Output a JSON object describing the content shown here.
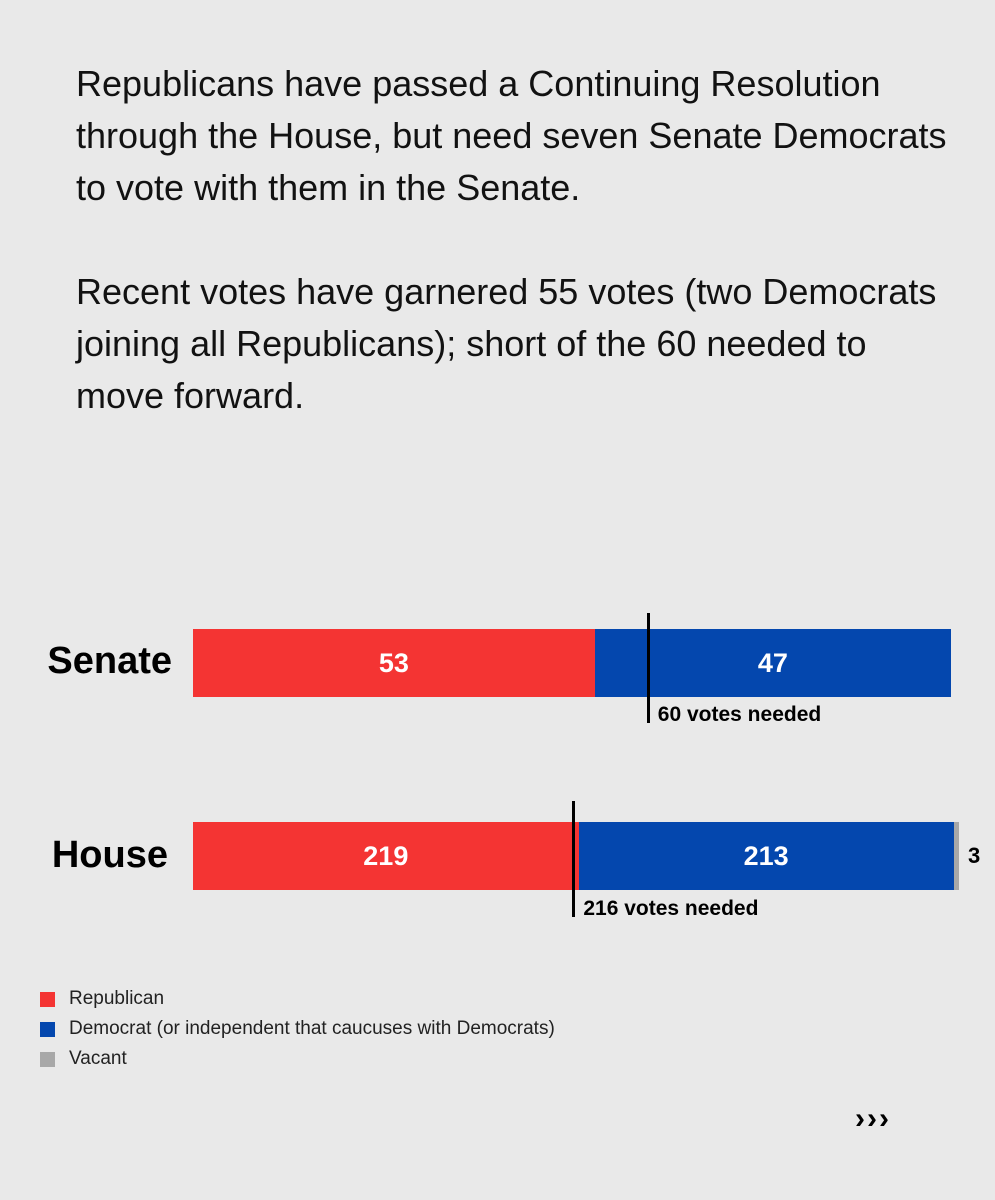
{
  "intro": {
    "paragraph1": "Republicans have passed a Continuing Resolution through the House, but need seven Senate Democrats to vote with them in the Senate.",
    "paragraph2": "Recent votes have garnered 55 votes (two Democrats joining all Republicans); short of the 60 needed to move forward."
  },
  "colors": {
    "republican": "#f43433",
    "democrat": "#0447ae",
    "vacant": "#a8a8a8"
  },
  "chart_data": {
    "type": "bar",
    "orientation": "horizontal",
    "stacked": true,
    "categories": [
      "Senate",
      "House"
    ],
    "series": [
      {
        "name": "Republican",
        "values": [
          53,
          219
        ]
      },
      {
        "name": "Democrat (or independent that caucuses with Democrats)",
        "values": [
          47,
          213
        ]
      },
      {
        "name": "Vacant",
        "values": [
          0,
          3
        ]
      }
    ],
    "totals": [
      100,
      435
    ],
    "thresholds": [
      {
        "value": 60,
        "label": "60 votes needed"
      },
      {
        "value": 216,
        "label": "216 votes needed"
      }
    ],
    "legend": {
      "position": "bottom-left"
    },
    "grid": false
  },
  "nav": {
    "next_label": "›››"
  }
}
